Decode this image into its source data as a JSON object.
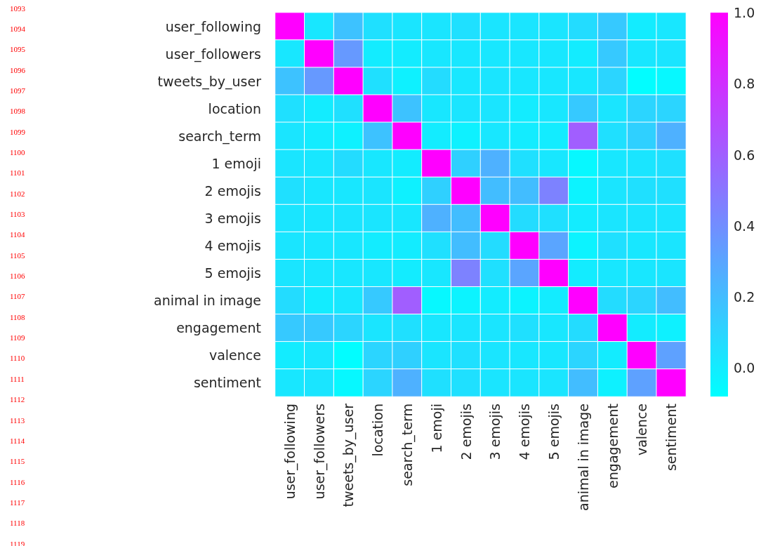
{
  "chart_data": {
    "type": "heatmap",
    "categories": [
      "user_following",
      "user_followers",
      "tweets_by_user",
      "location",
      "search_term",
      "1 emoji",
      "2 emojis",
      "3 emojis",
      "4 emojis",
      "5 emojis",
      "animal in image",
      "engagement",
      "valence",
      "sentiment"
    ],
    "y_categories": [
      "user_following",
      "user_followers",
      "tweets_by_user",
      "location",
      "search_term",
      "1 emoji",
      "2 emojis",
      "3 emojis",
      "4 emojis",
      "5 emojis",
      "animal in image",
      "engagement",
      "valence",
      "sentiment"
    ],
    "cells": [
      [
        1,
        0.02,
        0.18,
        0.05,
        0.03,
        0.03,
        0.05,
        0.03,
        0.03,
        0.03,
        0.07,
        0.15,
        0.0,
        0.02
      ],
      [
        0.02,
        1,
        0.35,
        0.0,
        0.0,
        0.02,
        0.02,
        0.02,
        0.02,
        0.02,
        0.0,
        0.15,
        0.02,
        0.03
      ],
      [
        0.18,
        0.35,
        1,
        0.05,
        -0.02,
        0.07,
        0.02,
        0.03,
        0.02,
        0.02,
        0.02,
        0.1,
        -0.07,
        -0.05
      ],
      [
        0.05,
        0.0,
        0.05,
        1,
        0.18,
        0.02,
        0.03,
        0.03,
        0.0,
        0.02,
        0.15,
        0.03,
        0.1,
        0.1
      ],
      [
        0.03,
        0.0,
        -0.02,
        0.18,
        1,
        0.0,
        -0.02,
        0.02,
        0.0,
        0.0,
        0.6,
        0.05,
        0.12,
        0.25
      ],
      [
        0.03,
        0.02,
        0.07,
        0.02,
        0.0,
        1,
        0.12,
        0.25,
        0.05,
        0.02,
        -0.05,
        0.02,
        0.03,
        0.05
      ],
      [
        0.05,
        0.02,
        0.02,
        0.03,
        -0.02,
        0.12,
        1,
        0.2,
        0.2,
        0.45,
        -0.03,
        0.03,
        0.05,
        0.05
      ],
      [
        0.03,
        0.02,
        0.03,
        0.03,
        0.02,
        0.25,
        0.2,
        1,
        0.07,
        0.05,
        0.0,
        0.03,
        0.03,
        0.03
      ],
      [
        0.03,
        0.02,
        0.02,
        0.0,
        0.0,
        0.05,
        0.2,
        0.07,
        1,
        0.3,
        -0.03,
        0.05,
        0.02,
        0.03
      ],
      [
        0.03,
        0.02,
        0.02,
        0.02,
        0.0,
        0.02,
        0.45,
        0.05,
        0.3,
        1,
        0.0,
        0.02,
        0.02,
        0.03
      ],
      [
        0.07,
        0.0,
        0.02,
        0.15,
        0.6,
        -0.05,
        -0.03,
        0.0,
        -0.03,
        0.0,
        1,
        0.07,
        0.1,
        0.2
      ],
      [
        0.15,
        0.15,
        0.1,
        0.03,
        0.05,
        0.02,
        0.03,
        0.03,
        0.05,
        0.02,
        0.07,
        1,
        0.0,
        -0.02
      ],
      [
        0.0,
        0.02,
        -0.07,
        0.1,
        0.12,
        0.03,
        0.05,
        0.03,
        0.02,
        0.02,
        0.1,
        0.0,
        1,
        0.32
      ],
      [
        0.02,
        0.03,
        -0.05,
        0.1,
        0.25,
        0.05,
        0.05,
        0.03,
        0.03,
        0.03,
        0.2,
        -0.02,
        0.32,
        1
      ]
    ],
    "clim": [
      -0.08,
      1.0
    ],
    "cticks": [
      {
        "value": 0,
        "label": "0.0"
      },
      {
        "value": 0.2,
        "label": "0.2"
      },
      {
        "value": 0.4,
        "label": "0.4"
      },
      {
        "value": 0.6,
        "label": "0.6"
      },
      {
        "value": 0.8,
        "label": "0.8"
      },
      {
        "value": 1,
        "label": "1.0"
      }
    ],
    "annotations": [
      "1093",
      "1094",
      "1095",
      "1096",
      "1097",
      "1098",
      "1099",
      "1100",
      "1101",
      "1102",
      "1103",
      "1104",
      "1105",
      "1106",
      "1107",
      "1108",
      "1109",
      "1110",
      "1111",
      "1112",
      "1113",
      "1114",
      "1115",
      "1116",
      "1117",
      "1118",
      "1119"
    ]
  }
}
